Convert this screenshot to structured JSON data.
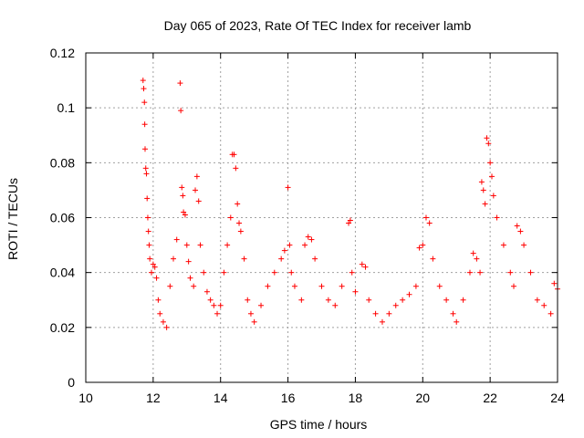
{
  "chart_data": {
    "type": "scatter",
    "title": "Day 065 of 2023, Rate Of TEC Index for receiver lamb",
    "xlabel": "GPS time / hours",
    "ylabel": "ROTI / TECUs",
    "xlim": [
      10,
      24
    ],
    "ylim": [
      0,
      0.12
    ],
    "x_ticks": [
      "10",
      "12",
      "14",
      "16",
      "18",
      "20",
      "22",
      "24"
    ],
    "y_ticks": [
      "0",
      "0.02",
      "0.04",
      "0.06",
      "0.08",
      "0.1",
      "0.12"
    ],
    "grid": true,
    "marker": "plus",
    "color": "#ff0000",
    "series": [
      {
        "x": [
          11.7,
          11.72,
          11.74,
          11.75,
          11.76,
          11.78,
          11.8,
          11.82,
          11.84,
          11.86,
          11.88,
          11.9,
          11.95,
          12.0,
          12.05,
          12.1,
          12.15,
          12.2,
          12.3,
          12.4,
          12.5,
          12.6,
          12.7,
          12.8,
          12.82,
          12.85,
          12.88,
          12.9,
          12.95,
          13.0,
          13.05,
          13.1,
          13.2,
          13.25,
          13.3,
          13.35,
          13.4,
          13.5,
          13.6,
          13.7,
          13.8,
          13.9,
          14.0,
          14.1,
          14.2,
          14.3,
          14.35,
          14.4,
          14.45,
          14.5,
          14.55,
          14.6,
          14.7,
          14.8,
          14.9,
          15.0,
          15.2,
          15.4,
          15.6,
          15.8,
          15.9,
          16.0,
          16.05,
          16.1,
          16.2,
          16.4,
          16.5,
          16.6,
          16.7,
          16.8,
          17.0,
          17.2,
          17.4,
          17.6,
          17.8,
          17.85,
          17.9,
          18.0,
          18.2,
          18.3,
          18.4,
          18.6,
          18.8,
          19.0,
          19.2,
          19.4,
          19.6,
          19.8,
          19.9,
          20.0,
          20.1,
          20.2,
          20.3,
          20.5,
          20.7,
          20.9,
          21.0,
          21.2,
          21.4,
          21.5,
          21.6,
          21.7,
          21.75,
          21.8,
          21.85,
          21.9,
          21.95,
          22.0,
          22.05,
          22.1,
          22.2,
          22.4,
          22.6,
          22.7,
          22.8,
          22.9,
          23.0,
          23.2,
          23.4,
          23.6,
          23.8,
          23.9,
          24.0
        ],
        "y": [
          0.11,
          0.107,
          0.102,
          0.094,
          0.085,
          0.078,
          0.076,
          0.067,
          0.06,
          0.055,
          0.05,
          0.045,
          0.04,
          0.043,
          0.042,
          0.038,
          0.03,
          0.025,
          0.022,
          0.02,
          0.035,
          0.045,
          0.052,
          0.109,
          0.099,
          0.071,
          0.068,
          0.062,
          0.061,
          0.05,
          0.044,
          0.038,
          0.035,
          0.07,
          0.075,
          0.066,
          0.05,
          0.04,
          0.033,
          0.03,
          0.028,
          0.025,
          0.028,
          0.04,
          0.05,
          0.06,
          0.083,
          0.083,
          0.078,
          0.065,
          0.058,
          0.055,
          0.045,
          0.03,
          0.025,
          0.022,
          0.028,
          0.035,
          0.04,
          0.045,
          0.048,
          0.071,
          0.05,
          0.04,
          0.035,
          0.03,
          0.05,
          0.053,
          0.052,
          0.045,
          0.035,
          0.03,
          0.028,
          0.035,
          0.058,
          0.059,
          0.04,
          0.033,
          0.043,
          0.042,
          0.03,
          0.025,
          0.022,
          0.025,
          0.028,
          0.03,
          0.032,
          0.035,
          0.049,
          0.05,
          0.06,
          0.058,
          0.045,
          0.035,
          0.03,
          0.025,
          0.022,
          0.03,
          0.04,
          0.047,
          0.045,
          0.04,
          0.073,
          0.07,
          0.065,
          0.089,
          0.087,
          0.08,
          0.075,
          0.068,
          0.06,
          0.05,
          0.04,
          0.035,
          0.057,
          0.055,
          0.05,
          0.04,
          0.03,
          0.028,
          0.025,
          0.036,
          0.034
        ]
      }
    ]
  }
}
